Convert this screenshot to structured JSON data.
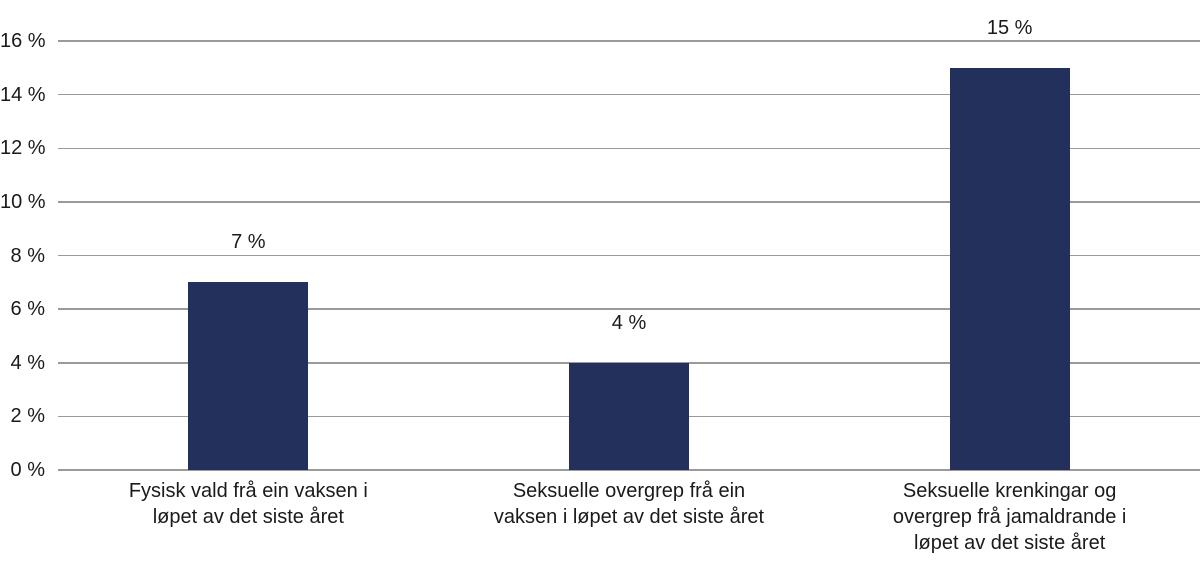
{
  "chart_data": {
    "type": "bar",
    "title": "",
    "xlabel": "",
    "ylabel": "",
    "legend_position": "none",
    "grid": "horizontal",
    "categories": [
      "Fysisk vald frå ein vaksen i\nløpet av det siste året",
      "Seksuelle overgrep frå ein\nvaksen i løpet av det siste året",
      "Seksuelle krenkingar og\novergrep frå jamaldrande i\nløpet av det siste året"
    ],
    "values": [
      7,
      4,
      15
    ],
    "value_labels": [
      "7 %",
      "4 %",
      "15 %"
    ],
    "y_tick_values": [
      0,
      2,
      4,
      6,
      8,
      10,
      12,
      14,
      16
    ],
    "y_tick_labels": [
      "0 %",
      "2 %",
      "4 %",
      "6 %",
      "8 %",
      "10 %",
      "12 %",
      "14 %",
      "16 %"
    ],
    "ylim": [
      0,
      16
    ],
    "colors": {
      "bar": "#23305b",
      "gridline": "#9a9a9a",
      "text": "#1a1a1a",
      "background": "#ffffff"
    }
  }
}
